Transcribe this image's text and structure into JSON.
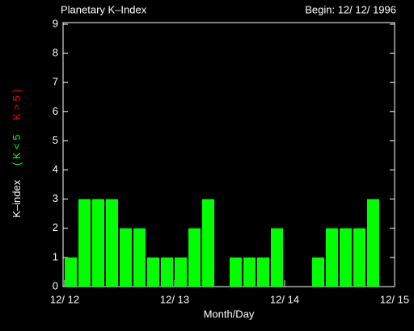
{
  "chart_data": {
    "type": "bar",
    "title": "Planetary K–Index",
    "subtitle": "Begin: 12/ 12/ 1996",
    "x_label": "Month/Day",
    "y_label": "K–index",
    "y_label_low": "( K < 5",
    "y_label_high": "K > 5 )",
    "low_color": "#00ff00",
    "high_color": "#ff0000",
    "x_tick_labels": [
      "12/ 12",
      "12/ 13",
      "12/ 14",
      "12/ 15"
    ],
    "values": [
      1,
      3,
      3,
      3,
      2,
      2,
      1,
      1,
      1,
      2,
      3,
      0,
      1,
      1,
      1,
      2,
      0,
      0,
      1,
      2,
      2,
      2,
      3,
      0
    ],
    "color": "#00ff00",
    "ylim": [
      0,
      9
    ],
    "yticks": [
      0,
      1,
      2,
      3,
      4,
      5,
      6,
      7,
      8,
      9
    ]
  }
}
